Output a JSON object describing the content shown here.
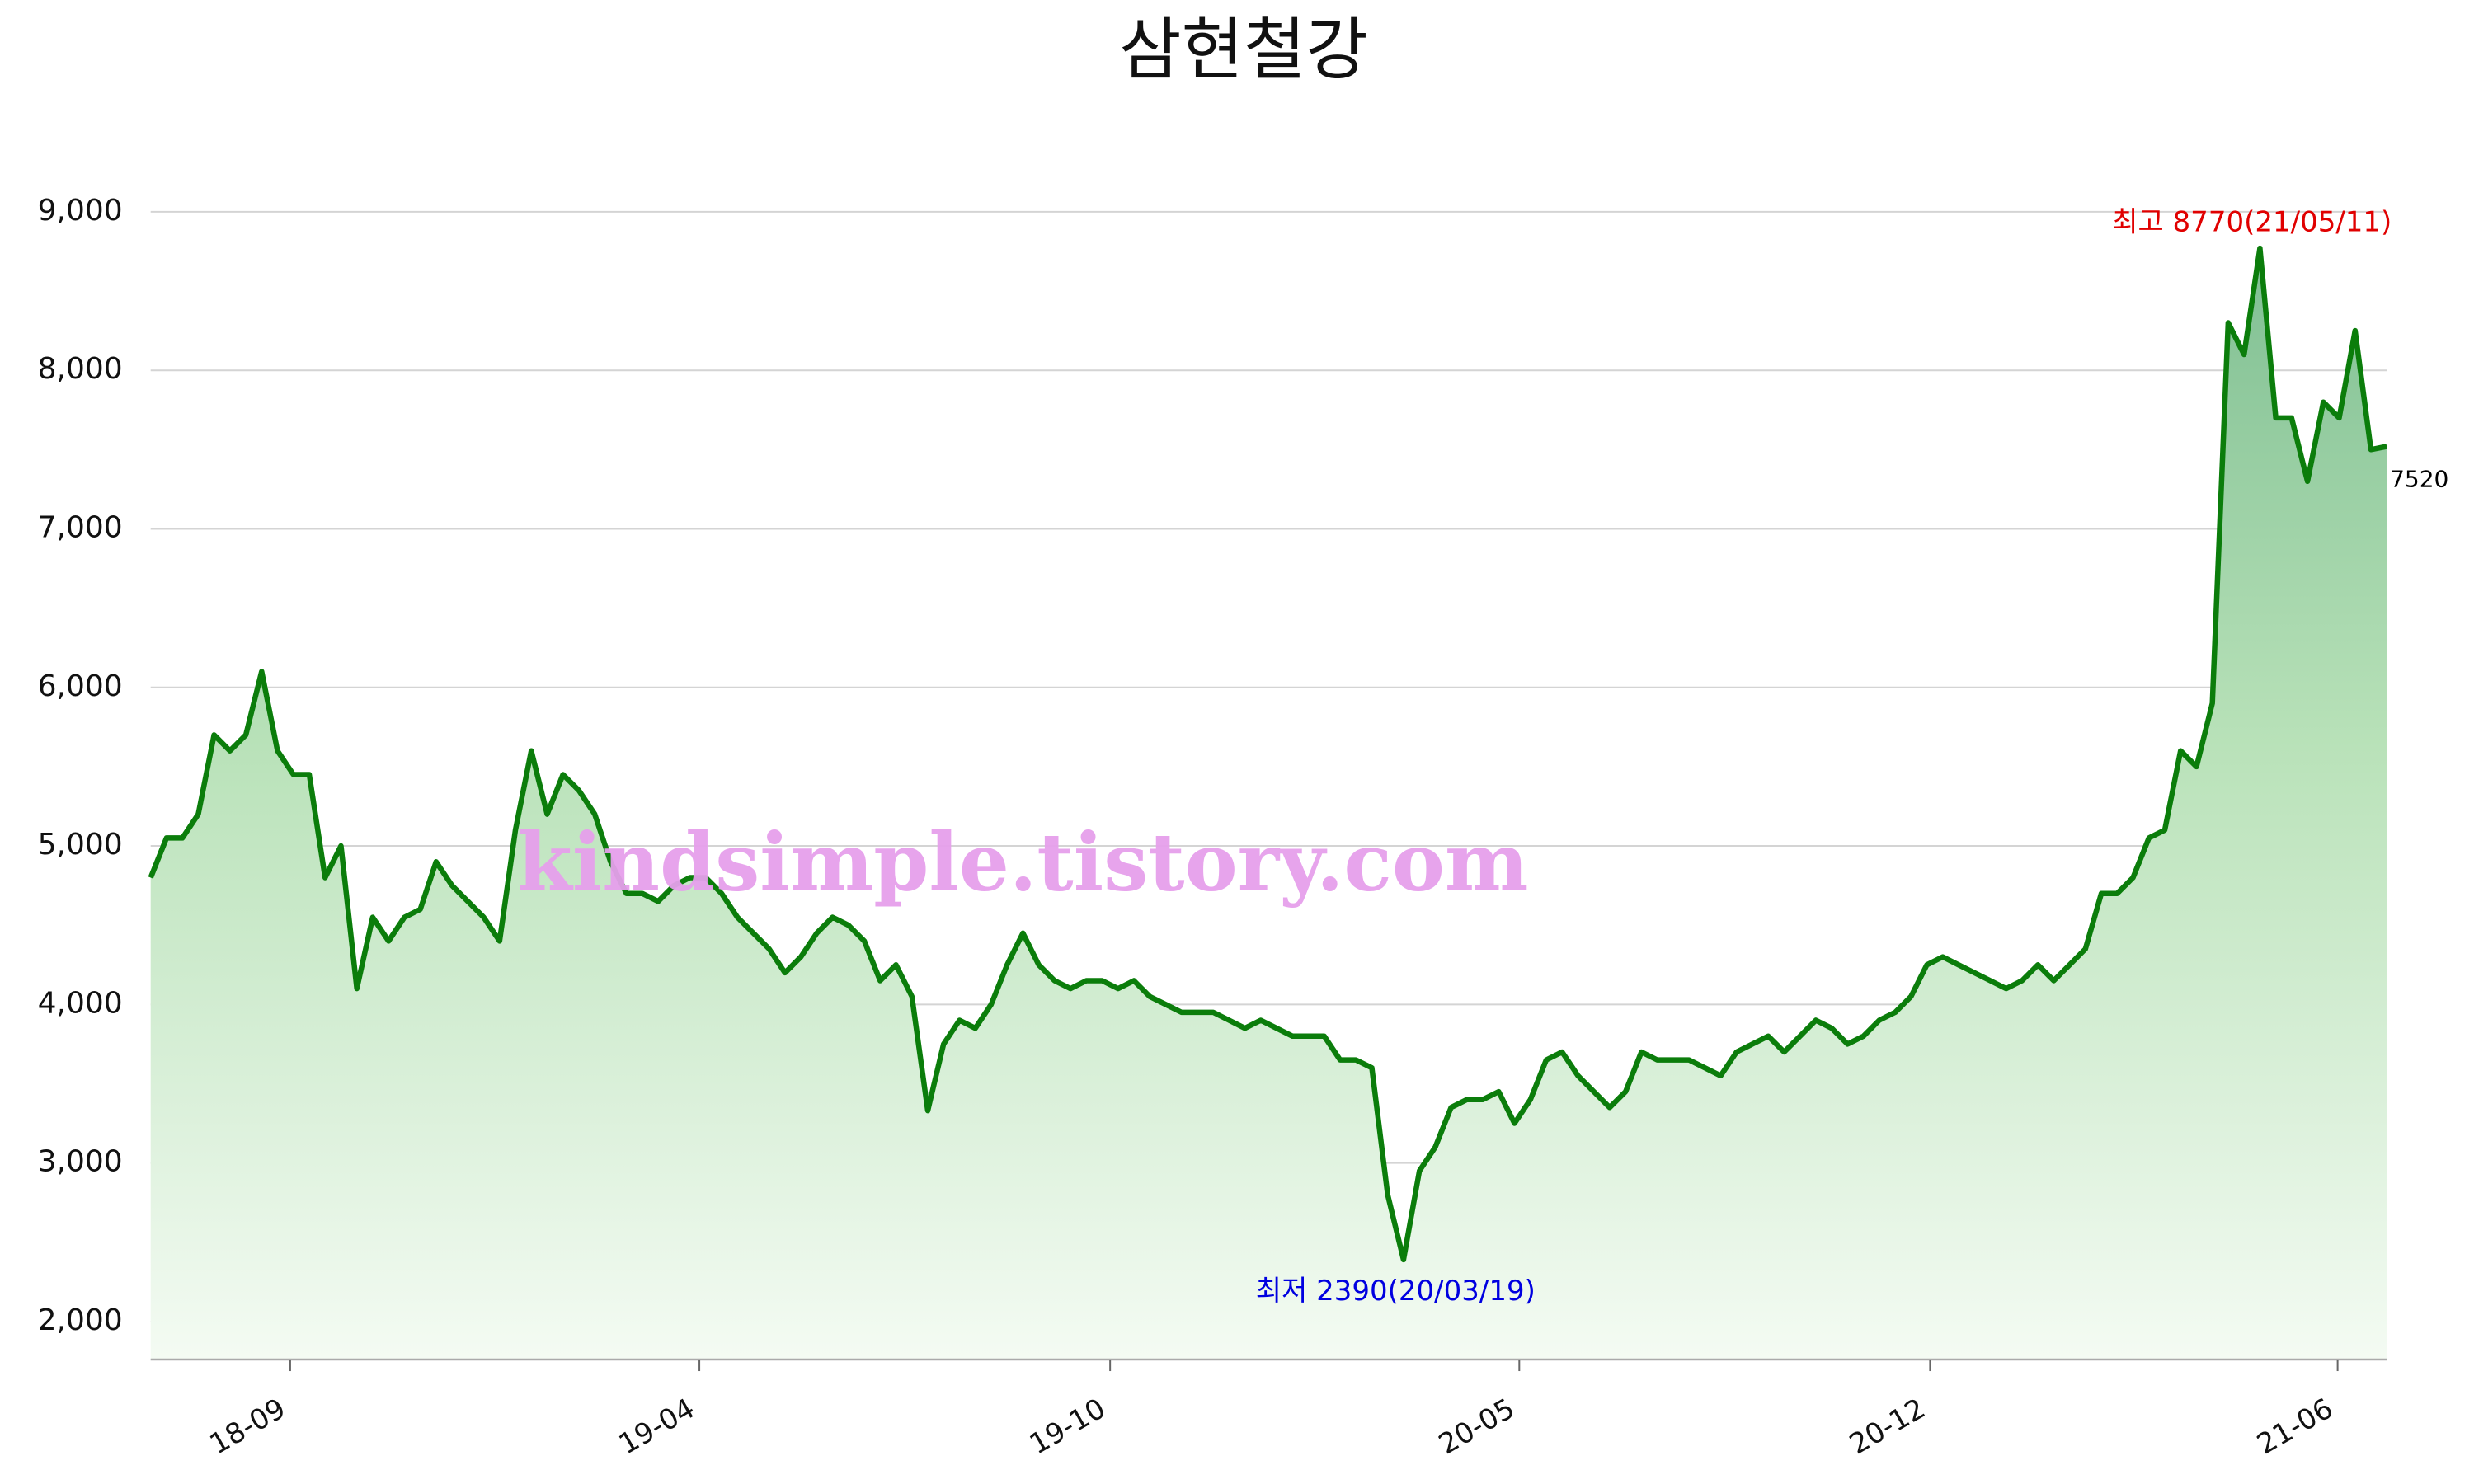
{
  "chart_data": {
    "type": "line",
    "title": "삼현철강",
    "values": [
      4800,
      5050,
      5050,
      5200,
      5700,
      5600,
      5700,
      6100,
      5600,
      5450,
      5450,
      4800,
      5000,
      4100,
      4550,
      4400,
      4550,
      4600,
      4900,
      4750,
      4650,
      4550,
      4400,
      5100,
      5600,
      5200,
      5450,
      5350,
      5200,
      4900,
      4700,
      4700,
      4650,
      4750,
      4800,
      4800,
      4700,
      4550,
      4450,
      4350,
      4200,
      4300,
      4450,
      4550,
      4500,
      4400,
      4150,
      4250,
      4050,
      3330,
      3750,
      3900,
      3850,
      4000,
      4250,
      4450,
      4250,
      4150,
      4100,
      4150,
      4150,
      4100,
      4150,
      4050,
      4000,
      3950,
      3950,
      3950,
      3900,
      3850,
      3900,
      3850,
      3800,
      3800,
      3800,
      3650,
      3650,
      3600,
      2800,
      2390,
      2950,
      3100,
      3350,
      3400,
      3400,
      3450,
      3250,
      3400,
      3650,
      3700,
      3550,
      3450,
      3350,
      3450,
      3700,
      3650,
      3650,
      3650,
      3600,
      3550,
      3700,
      3750,
      3800,
      3700,
      3800,
      3900,
      3850,
      3750,
      3800,
      3900,
      3950,
      4050,
      4250,
      4300,
      4250,
      4200,
      4150,
      4100,
      4150,
      4250,
      4150,
      4250,
      4350,
      4700,
      4700,
      4800,
      5050,
      5100,
      5600,
      5500,
      5900,
      8300,
      8100,
      8770,
      7700,
      7700,
      7300,
      7800,
      7700,
      8250,
      7500,
      7520
    ],
    "color": "#0b7d0b",
    "xlim": [
      0,
      141
    ],
    "xticks": [
      {
        "value": 8.8,
        "label": "18-09"
      },
      {
        "value": 34.6,
        "label": "19-04"
      },
      {
        "value": 60.5,
        "label": "19-10"
      },
      {
        "value": 86.3,
        "label": "20-05"
      },
      {
        "value": 112.2,
        "label": "20-12"
      },
      {
        "value": 137.9,
        "label": "21-06"
      }
    ],
    "ylim": [
      1760,
      9400
    ],
    "yticks": [
      {
        "value": 2000,
        "label": "2,000"
      },
      {
        "value": 3000,
        "label": "3,000"
      },
      {
        "value": 4000,
        "label": "4,000"
      },
      {
        "value": 5000,
        "label": "5,000"
      },
      {
        "value": 6000,
        "label": "6,000"
      },
      {
        "value": 7000,
        "label": "7,000"
      },
      {
        "value": 8000,
        "label": "8,000"
      },
      {
        "value": 9000,
        "label": "9,000"
      }
    ],
    "grid": true,
    "annotations": [
      {
        "text": "최고 8770(21/05/11)",
        "color": "#e00000"
      },
      {
        "text": "최저 2390(20/03/19)",
        "color": "#0000e0"
      },
      {
        "text": "7520",
        "color": "#000000"
      }
    ],
    "watermark": "kindsimple.tistory.com"
  }
}
